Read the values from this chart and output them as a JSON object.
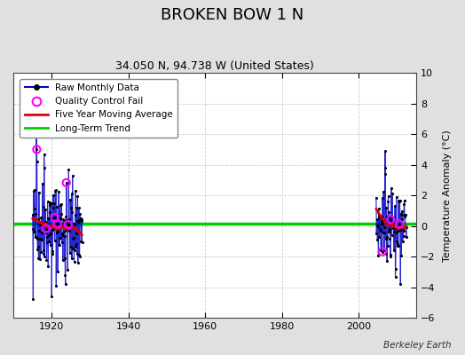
{
  "title": "BROKEN BOW 1 N",
  "subtitle": "34.050 N, 94.738 W (United States)",
  "ylabel": "Temperature Anomaly (°C)",
  "credit": "Berkeley Earth",
  "xlim": [
    1910,
    2015
  ],
  "ylim": [
    -6,
    10
  ],
  "yticks": [
    -6,
    -4,
    -2,
    0,
    2,
    4,
    6,
    8,
    10
  ],
  "xticks": [
    1920,
    1940,
    1960,
    1980,
    2000
  ],
  "plot_bg": "#ffffff",
  "fig_bg": "#e0e0e0",
  "grid_color": "#cccccc",
  "long_term_trend_y": 0.18,
  "long_term_trend_color": "#00cc00",
  "five_year_avg_color": "#dd0000",
  "raw_data_color": "#0000cc",
  "raw_dot_color": "#000000",
  "qc_fail_color": "#ff00ff",
  "title_fontsize": 13,
  "subtitle_fontsize": 9,
  "tick_fontsize": 8,
  "ylabel_fontsize": 8
}
